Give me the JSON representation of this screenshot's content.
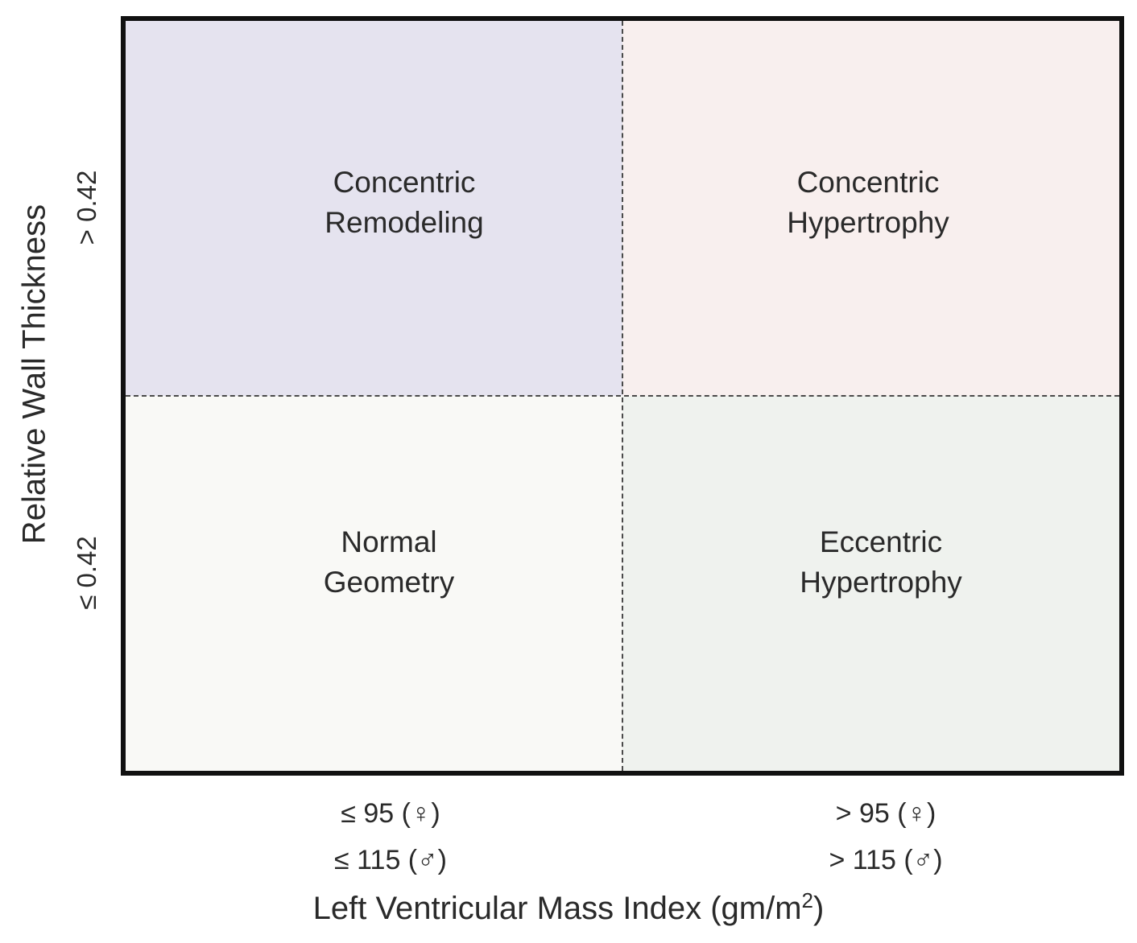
{
  "quadrants": {
    "top_left": {
      "line1": "Concentric",
      "line2": "Remodeling",
      "color": "#e5e3ef"
    },
    "top_right": {
      "line1": "Concentric",
      "line2": "Hypertrophy",
      "color": "#f8efee"
    },
    "bottom_left": {
      "line1": "Normal",
      "line2": "Geometry",
      "color": "#f9f9f6"
    },
    "bottom_right": {
      "line1": "Eccentric",
      "line2": "Hypertrophy",
      "color": "#eff2ee"
    }
  },
  "y_axis": {
    "label": "Relative Wall Thickness",
    "tick_high": "> 0.42",
    "tick_low": "≤ 0.42"
  },
  "x_axis": {
    "label": "Left Ventricular Mass Index (gm/m",
    "label_sup": "2",
    "label_end": ")",
    "tick_low_female": "≤ 95 (♀)",
    "tick_low_male": "≤ 115 (♂)",
    "tick_high_female": "> 95 (♀)",
    "tick_high_male": "> 115 (♂)"
  }
}
